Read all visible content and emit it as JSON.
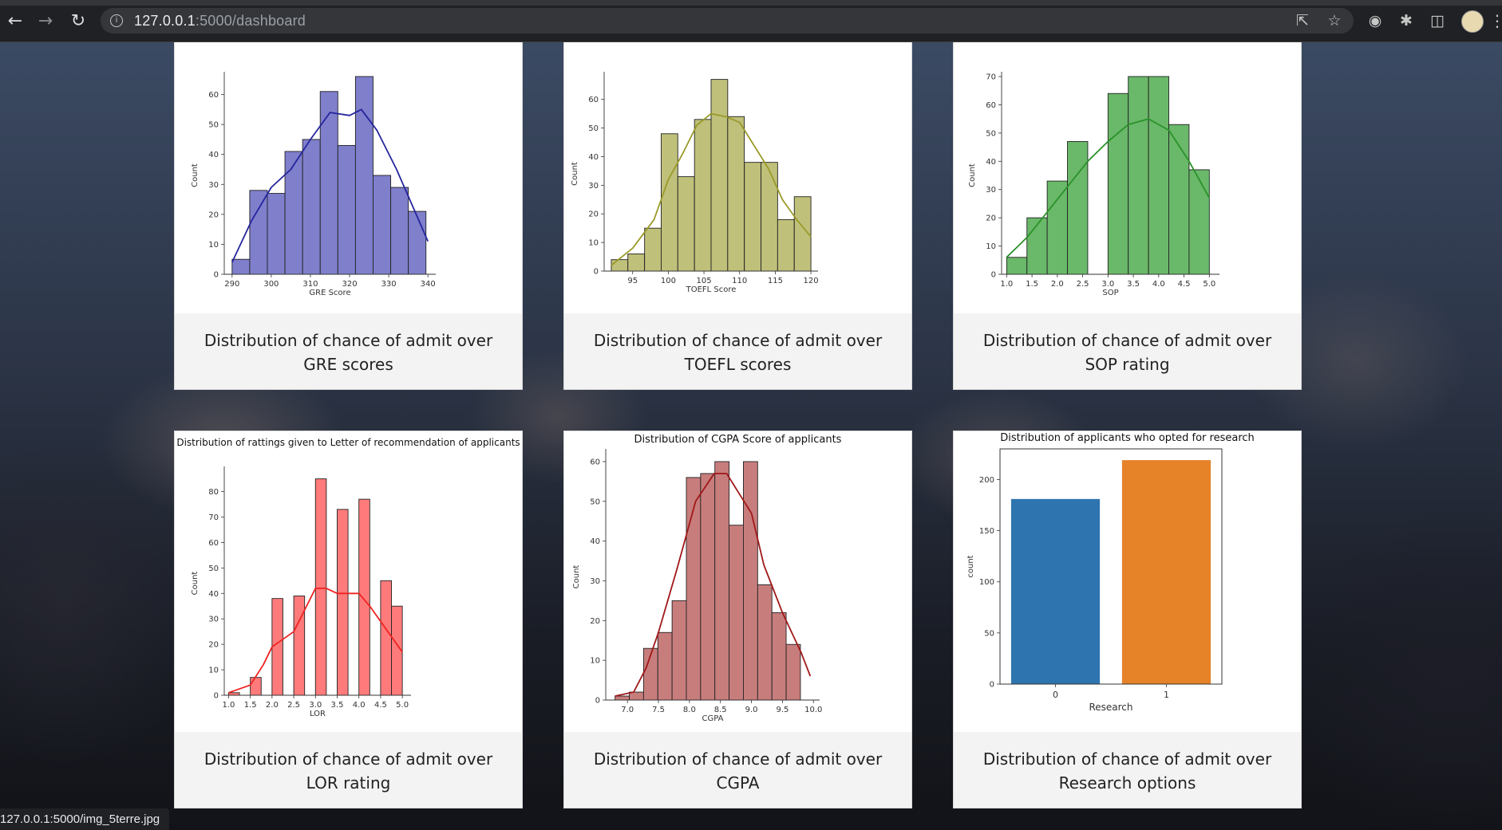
{
  "browser": {
    "url_host": "127.0.0.1",
    "url_path": ":5000/dashboard",
    "status_url": "127.0.0.1:5000/img_5terre.jpg",
    "icons": [
      "back-icon",
      "forward-icon",
      "reload-icon",
      "info-icon",
      "share-icon",
      "star-icon",
      "globe-icon",
      "extensions-icon",
      "sidepanel-icon",
      "avatar",
      "menu-icon"
    ]
  },
  "cards": [
    {
      "caption": "Distribution of chance of admit over GRE scores"
    },
    {
      "caption": "Distribution of chance of admit over TOEFL scores"
    },
    {
      "caption": "Distribution of chance of admit over SOP rating"
    },
    {
      "caption": "Distribution of chance of admit over LOR rating"
    },
    {
      "caption": "Distribution of chance of admit over CGPA"
    },
    {
      "caption": "Distribution of chance of admit over Research options"
    }
  ],
  "chart_data": [
    {
      "type": "bar",
      "subtype": "histogram-kde",
      "title": "",
      "xlabel": "GRE Score",
      "ylabel": "Count",
      "color": "#7f7fcc",
      "edge": "#222222",
      "kde_color": "#25259e",
      "bins_left": [
        290,
        294.5,
        299,
        303.5,
        308,
        312.5,
        317,
        321.5,
        326,
        330.5,
        335
      ],
      "bin_width": 4.5,
      "values": [
        5,
        28,
        27,
        41,
        45,
        61,
        43,
        66,
        33,
        29,
        21
      ],
      "kde": [
        [
          290,
          4
        ],
        [
          295,
          18
        ],
        [
          300,
          29
        ],
        [
          305,
          35
        ],
        [
          310,
          45
        ],
        [
          315,
          54
        ],
        [
          320,
          53
        ],
        [
          323,
          55
        ],
        [
          327,
          48
        ],
        [
          332,
          35
        ],
        [
          336,
          23
        ],
        [
          340,
          11
        ]
      ],
      "xlim": [
        288,
        342
      ],
      "ylim": [
        0,
        66
      ],
      "xticks": [
        290,
        300,
        310,
        320,
        330,
        340
      ],
      "yticks": [
        0,
        10,
        20,
        30,
        40,
        50,
        60
      ]
    },
    {
      "type": "bar",
      "subtype": "histogram-kde",
      "title": "",
      "xlabel": "TOEFL Score",
      "ylabel": "Count",
      "color": "#bfc07a",
      "edge": "#222222",
      "kde_color": "#9a9a2a",
      "bins_left": [
        92,
        94.33,
        96.67,
        99,
        101.33,
        103.67,
        106,
        108.33,
        110.67,
        113,
        115.33,
        117.67
      ],
      "bin_width": 2.33,
      "values": [
        4,
        6,
        15,
        48,
        33,
        53,
        67,
        54,
        38,
        38,
        18,
        26
      ],
      "kde": [
        [
          92,
          2
        ],
        [
          95,
          8
        ],
        [
          98,
          18
        ],
        [
          100,
          32
        ],
        [
          102,
          41
        ],
        [
          104,
          51
        ],
        [
          106,
          55
        ],
        [
          108,
          54
        ],
        [
          110,
          52
        ],
        [
          112,
          44
        ],
        [
          114,
          36
        ],
        [
          116,
          25
        ],
        [
          118,
          18
        ],
        [
          120,
          12
        ]
      ],
      "xlim": [
        91,
        121
      ],
      "ylim": [
        0,
        68
      ],
      "xticks": [
        95,
        100,
        105,
        110,
        115,
        120
      ],
      "yticks": [
        0,
        10,
        20,
        30,
        40,
        50,
        60
      ]
    },
    {
      "type": "bar",
      "subtype": "histogram-kde",
      "title": "",
      "xlabel": "SOP",
      "ylabel": "Count",
      "color": "#6ab86a",
      "edge": "#222222",
      "kde_color": "#2a922a",
      "bins_left": [
        1.0,
        1.4,
        1.8,
        2.2,
        2.6,
        3.0,
        3.4,
        3.8,
        4.2,
        4.6
      ],
      "bin_width": 0.4,
      "values": [
        6,
        20,
        33,
        47,
        0,
        64,
        70,
        70,
        53,
        37
      ],
      "kde": [
        [
          1.0,
          6
        ],
        [
          1.4,
          13
        ],
        [
          1.8,
          22
        ],
        [
          2.2,
          31
        ],
        [
          2.6,
          40
        ],
        [
          3.0,
          47
        ],
        [
          3.4,
          53
        ],
        [
          3.8,
          55
        ],
        [
          4.2,
          51
        ],
        [
          4.6,
          40
        ],
        [
          5.0,
          27
        ]
      ],
      "xlim": [
        0.9,
        5.2
      ],
      "ylim": [
        0,
        70
      ],
      "xticks": [
        1.0,
        1.5,
        2.0,
        2.5,
        3.0,
        3.5,
        4.0,
        4.5,
        5.0
      ],
      "yticks": [
        0,
        10,
        20,
        30,
        40,
        50,
        60,
        70
      ]
    },
    {
      "type": "bar",
      "subtype": "histogram-kde",
      "title": "Distribution of rattings given to Letter of recommendation of applicants",
      "xlabel": "LOR",
      "ylabel": "Count",
      "color": "#ff7b7b",
      "edge": "#222222",
      "kde_color": "#ee2222",
      "bins_left": [
        1.0,
        1.25,
        1.5,
        1.75,
        2.0,
        2.25,
        2.5,
        2.75,
        3.0,
        3.25,
        3.5,
        3.75,
        4.0,
        4.25,
        4.5,
        4.75
      ],
      "bin_width": 0.25,
      "values": [
        1,
        0,
        7,
        0,
        38,
        0,
        39,
        0,
        85,
        0,
        73,
        0,
        77,
        0,
        45,
        35
      ],
      "kde": [
        [
          1.0,
          1
        ],
        [
          1.5,
          4
        ],
        [
          1.8,
          12
        ],
        [
          2.0,
          19
        ],
        [
          2.5,
          25
        ],
        [
          3.0,
          42
        ],
        [
          3.25,
          42
        ],
        [
          3.5,
          40
        ],
        [
          4.0,
          40
        ],
        [
          4.25,
          35
        ],
        [
          4.5,
          29
        ],
        [
          5.0,
          17
        ]
      ],
      "xlim": [
        0.9,
        5.2
      ],
      "ylim": [
        0,
        88
      ],
      "xticks": [
        1.0,
        1.5,
        2.0,
        2.5,
        3.0,
        3.5,
        4.0,
        4.5,
        5.0
      ],
      "yticks": [
        0,
        10,
        20,
        30,
        40,
        50,
        60,
        70,
        80
      ]
    },
    {
      "type": "bar",
      "subtype": "histogram-kde",
      "title": "Distribution of CGPA Score of applicants",
      "xlabel": "CGPA",
      "ylabel": "Count",
      "color": "#c87d7d",
      "edge": "#222222",
      "kde_color": "#a01818",
      "bins_left": [
        6.8,
        7.03,
        7.26,
        7.49,
        7.72,
        7.95,
        8.18,
        8.41,
        8.64,
        8.87,
        9.1,
        9.33,
        9.56,
        9.79
      ],
      "bin_width": 0.23,
      "values": [
        1,
        2,
        13,
        17,
        25,
        56,
        57,
        60,
        44,
        60,
        29,
        22,
        14,
        0
      ],
      "kde": [
        [
          6.8,
          1
        ],
        [
          7.1,
          2
        ],
        [
          7.3,
          8
        ],
        [
          7.5,
          17
        ],
        [
          7.8,
          33
        ],
        [
          8.1,
          50
        ],
        [
          8.4,
          57
        ],
        [
          8.6,
          57
        ],
        [
          8.8,
          52
        ],
        [
          9.0,
          47
        ],
        [
          9.2,
          34
        ],
        [
          9.5,
          22
        ],
        [
          9.8,
          12
        ],
        [
          9.95,
          6
        ]
      ],
      "xlim": [
        6.65,
        10.1
      ],
      "ylim": [
        0,
        62
      ],
      "xticks": [
        7.0,
        7.5,
        8.0,
        8.5,
        9.0,
        9.5,
        10.0
      ],
      "yticks": [
        0,
        10,
        20,
        30,
        40,
        50,
        60
      ]
    },
    {
      "type": "bar",
      "title": "Distribution of applicants who opted for research",
      "xlabel": "Research",
      "ylabel": "count",
      "categories": [
        "0",
        "1"
      ],
      "values": [
        181,
        219
      ],
      "colors": [
        "#2e75b0",
        "#e68228"
      ],
      "ylim": [
        0,
        230
      ],
      "yticks": [
        0,
        50,
        100,
        150,
        200
      ]
    }
  ]
}
